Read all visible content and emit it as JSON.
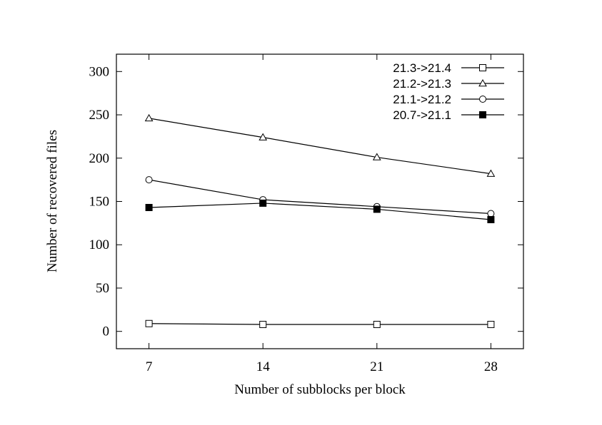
{
  "chart_data": {
    "type": "line",
    "title": "",
    "xlabel": "Number of subblocks per block",
    "ylabel": "Number of recovered files",
    "x": [
      7,
      14,
      21,
      28
    ],
    "x_tick_labels": [
      "7",
      "14",
      "21",
      "28"
    ],
    "xlim": [
      5,
      30
    ],
    "ylim": [
      -20,
      320
    ],
    "y_ticks": [
      0,
      50,
      100,
      150,
      200,
      250,
      300
    ],
    "y_tick_labels": [
      "0",
      "50",
      "100",
      "150",
      "200",
      "250",
      "300"
    ],
    "grid": false,
    "legend_position": "top-right",
    "series": [
      {
        "name": "21.3->21.4",
        "marker": "square-open",
        "color": "#000000",
        "values": [
          9,
          8,
          8,
          8
        ]
      },
      {
        "name": "21.2->21.3",
        "marker": "triangle-open",
        "color": "#000000",
        "values": [
          246,
          224,
          201,
          182
        ]
      },
      {
        "name": "21.1->21.2",
        "marker": "circle-open",
        "color": "#000000",
        "values": [
          175,
          152,
          144,
          136
        ]
      },
      {
        "name": "20.7->21.1",
        "marker": "square-filled",
        "color": "#000000",
        "values": [
          143,
          148,
          141,
          129
        ]
      }
    ]
  }
}
